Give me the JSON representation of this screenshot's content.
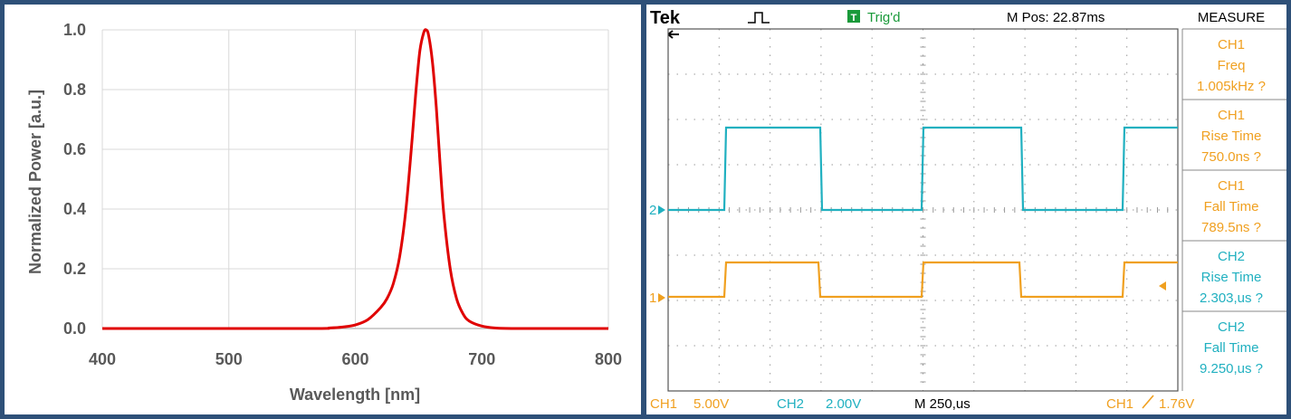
{
  "spectrum": {
    "chart_data": {
      "type": "line",
      "xlabel": "Wavelength [nm]",
      "ylabel": "Normalized Power [a.u.]",
      "xlim": [
        400,
        800
      ],
      "ylim": [
        0,
        1.0
      ],
      "xticks": [
        "400",
        "500",
        "600",
        "700",
        "800"
      ],
      "yticks": [
        "0.0",
        "0.2",
        "0.4",
        "0.6",
        "0.8",
        "1.0"
      ],
      "grid": true,
      "series_color": "#e00000",
      "x": [
        400,
        560,
        580,
        590,
        600,
        610,
        620,
        625,
        630,
        635,
        640,
        645,
        648,
        651,
        654,
        656,
        658,
        661,
        664,
        667,
        670,
        675,
        680,
        685,
        690,
        700,
        710,
        730,
        800
      ],
      "y": [
        0,
        0,
        0.002,
        0.005,
        0.012,
        0.03,
        0.07,
        0.1,
        0.15,
        0.24,
        0.4,
        0.64,
        0.8,
        0.93,
        0.99,
        1.0,
        0.98,
        0.89,
        0.74,
        0.55,
        0.38,
        0.2,
        0.1,
        0.05,
        0.025,
        0.008,
        0.002,
        0,
        0
      ]
    }
  },
  "scope": {
    "brand": "Tek",
    "trig_status": "Trig'd",
    "m_pos": "M Pos: 22.87ms",
    "measure_title": "MEASURE",
    "measurements": [
      {
        "channel": "CH1",
        "name": "Freq",
        "value": "1.005kHz ?",
        "color": "#f0a020"
      },
      {
        "channel": "CH1",
        "name": "Rise Time",
        "value": "750.0ns ?",
        "color": "#f0a020"
      },
      {
        "channel": "CH1",
        "name": "Fall Time",
        "value": "789.5ns ?",
        "color": "#f0a020"
      },
      {
        "channel": "CH2",
        "name": "Rise Time",
        "value": "2.303,us ?",
        "color": "#20b0c0"
      },
      {
        "channel": "CH2",
        "name": "Fall Time",
        "value": "9.250,us ?",
        "color": "#20b0c0"
      }
    ],
    "ch1_label": "CH1",
    "ch1_scale": "5.00V",
    "ch2_label": "CH2",
    "ch2_scale": "2.00V",
    "timebase": "M 250,us",
    "trigger_channel": "CH1",
    "trigger_level": "1.76V",
    "ch1_marker": "1",
    "ch2_marker": "2",
    "ch1_color": "#f0a020",
    "ch2_color": "#20b0c0",
    "chart_data": {
      "type": "line",
      "series": [
        {
          "channel": "CH2",
          "low": 0,
          "high": 1,
          "color": "#20b0c0"
        },
        {
          "channel": "CH1",
          "low": 0,
          "high": 1,
          "color": "#f0a020"
        }
      ]
    }
  }
}
